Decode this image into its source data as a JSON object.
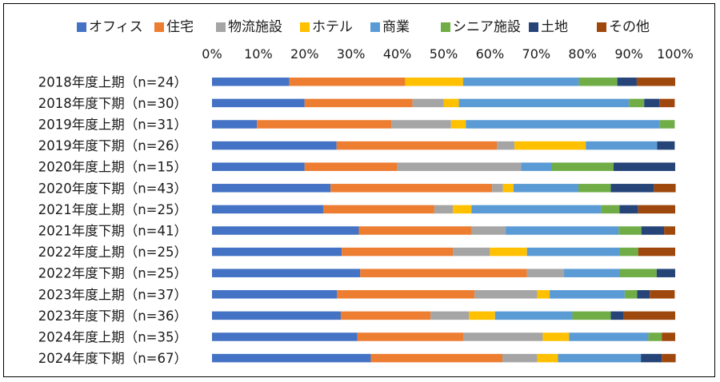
{
  "chart_data": {
    "type": "bar",
    "orientation": "horizontal",
    "stacked": true,
    "percent": true,
    "title": "",
    "xlabel": "",
    "ylabel": "",
    "xlim": [
      0,
      100
    ],
    "x_ticks": [
      "0%",
      "10%",
      "20%",
      "30%",
      "40%",
      "50%",
      "60%",
      "70%",
      "80%",
      "90%",
      "100%"
    ],
    "legend_position": "top",
    "grid": false,
    "categories": [
      "2018年度上期（n=24）",
      "2018年度下期（n=30）",
      "2019年度上期（n=31）",
      "2019年度下期（n=26）",
      "2020年度上期（n=15）",
      "2020年度下期（n=43）",
      "2021年度上期（n=25）",
      "2021年度下期（n=41）",
      "2022年度上期（n=25）",
      "2022年度下期（n=25）",
      "2023年度上期（n=37）",
      "2023年度下期（n=36）",
      "2024年度上期（n=35）",
      "2024年度下期（n=67）"
    ],
    "series": [
      {
        "name": "オフィス",
        "color": "#4472C4",
        "values": [
          16.7,
          20.0,
          9.7,
          26.9,
          20.0,
          25.6,
          24.0,
          31.7,
          28.0,
          32.0,
          27.0,
          27.8,
          31.4,
          34.3
        ]
      },
      {
        "name": "住宅",
        "color": "#ED7D31",
        "values": [
          25.0,
          23.3,
          29.0,
          34.6,
          20.0,
          34.9,
          24.0,
          24.4,
          24.0,
          36.0,
          29.7,
          19.4,
          22.9,
          28.4
        ]
      },
      {
        "name": "物流施設",
        "color": "#A5A5A5",
        "values": [
          0.0,
          6.7,
          12.9,
          3.8,
          26.7,
          2.3,
          4.0,
          7.3,
          8.0,
          8.0,
          13.5,
          8.3,
          17.1,
          7.5
        ]
      },
      {
        "name": "ホテル",
        "color": "#FFC000",
        "values": [
          12.5,
          3.3,
          3.2,
          15.4,
          0.0,
          2.3,
          4.0,
          0.0,
          8.0,
          0.0,
          2.7,
          5.6,
          5.7,
          4.5
        ]
      },
      {
        "name": "商業",
        "color": "#5B9BD5",
        "values": [
          25.0,
          36.7,
          41.9,
          15.4,
          6.7,
          14.0,
          28.0,
          24.4,
          20.0,
          12.0,
          16.2,
          16.7,
          17.1,
          17.9
        ]
      },
      {
        "name": "シニア施設",
        "color": "#70AD47",
        "values": [
          8.3,
          3.3,
          3.2,
          0.0,
          13.3,
          7.0,
          4.0,
          4.9,
          4.0,
          8.0,
          2.7,
          8.3,
          2.9,
          0.0
        ]
      },
      {
        "name": "土地",
        "color": "#264478",
        "values": [
          4.2,
          3.3,
          0.0,
          3.8,
          13.3,
          9.3,
          4.0,
          4.9,
          0.0,
          4.0,
          2.7,
          2.8,
          0.0,
          4.5
        ]
      },
      {
        "name": "その他",
        "color": "#9E480E",
        "values": [
          8.3,
          3.3,
          0.0,
          0.0,
          0.0,
          4.7,
          8.0,
          2.4,
          8.0,
          0.0,
          5.4,
          11.1,
          2.9,
          3.0
        ]
      }
    ]
  }
}
